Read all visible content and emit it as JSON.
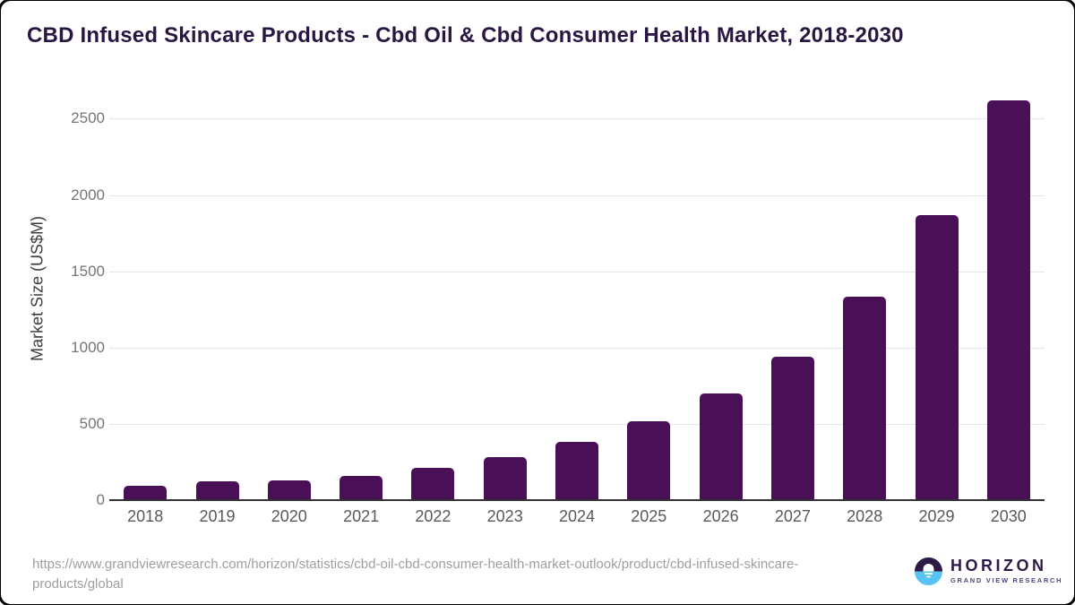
{
  "header": {
    "title": "CBD Infused Skincare Products - Cbd Oil & Cbd Consumer Health Market, 2018-2030"
  },
  "chart_data": {
    "type": "bar",
    "title": "CBD Infused Skincare Products - Cbd Oil & Cbd Consumer Health Market, 2018-2030",
    "categories": [
      "2018",
      "2019",
      "2020",
      "2021",
      "2022",
      "2023",
      "2024",
      "2025",
      "2026",
      "2027",
      "2028",
      "2029",
      "2030"
    ],
    "values": [
      92,
      123,
      131,
      157,
      210,
      285,
      380,
      515,
      700,
      940,
      1333,
      1870,
      2620
    ],
    "xlabel": "",
    "ylabel": "Market Size (US$M)",
    "ylim": [
      0,
      2650
    ],
    "yticks": [
      0,
      500,
      1000,
      1500,
      2000,
      2500
    ],
    "grid": true,
    "legend": "none",
    "bar_color": "#4A1057"
  },
  "footer": {
    "source_url_lines": [
      "https://www.grandviewresearch.com/horizon/statistics/cbd-oil-cbd-consumer-health-market-outlook/product/cbd-infused-skincare-",
      "products/global"
    ],
    "logo": {
      "name": "HORIZON",
      "subtitle": "GRAND VIEW RESEARCH"
    }
  },
  "colors": {
    "bar": "#4A1057",
    "title_text": "#291642",
    "axis_title_text": "#3d3d3d",
    "ytick_text": "#757575",
    "xtick_text": "#595959",
    "gridline": "#e6e6e6",
    "axis_line": "#333333",
    "url_text": "#9e9e9e",
    "logo_dark_purple": "#2e1a47",
    "logo_light_blue": "#56c3f1",
    "frame_border": "#000000"
  }
}
